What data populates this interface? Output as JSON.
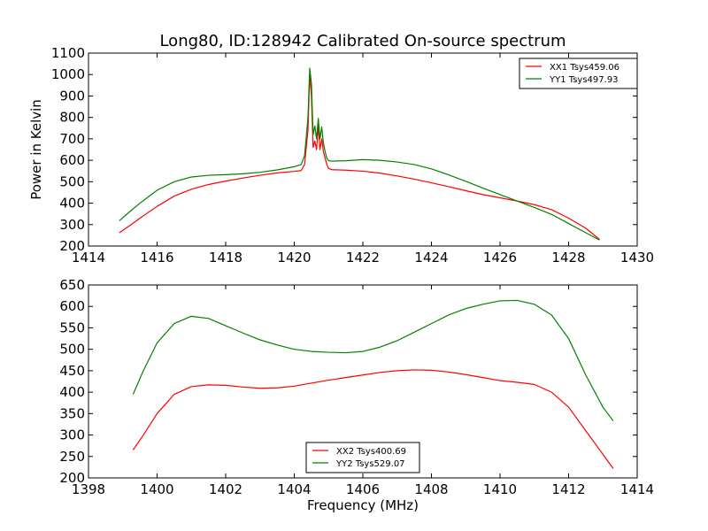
{
  "chart_data": [
    {
      "type": "line",
      "title": "Long80, ID:128942 Calibrated On-source spectrum",
      "xlabel": "",
      "ylabel": "Power in Kelvin",
      "xlim": [
        1414,
        1430
      ],
      "ylim": [
        200,
        1100
      ],
      "xticks": [
        1414,
        1416,
        1418,
        1420,
        1422,
        1424,
        1426,
        1428,
        1430
      ],
      "yticks": [
        200,
        300,
        400,
        500,
        600,
        700,
        800,
        900,
        1000,
        1100
      ],
      "grid": false,
      "legend_position": "top-right",
      "series": [
        {
          "name": "XX1 Tsys459.06",
          "color": "#ff0000",
          "x": [
            1414.9,
            1415.2,
            1415.5,
            1416.0,
            1416.5,
            1417.0,
            1417.5,
            1418.0,
            1418.5,
            1419.0,
            1419.5,
            1420.0,
            1420.2,
            1420.3,
            1420.4,
            1420.45,
            1420.5,
            1420.55,
            1420.6,
            1420.65,
            1420.7,
            1420.75,
            1420.8,
            1420.85,
            1420.9,
            1420.95,
            1421.0,
            1421.1,
            1421.5,
            1422.0,
            1422.5,
            1423.0,
            1423.5,
            1424.0,
            1424.5,
            1425.0,
            1425.5,
            1426.0,
            1426.5,
            1427.0,
            1427.5,
            1428.0,
            1428.5,
            1428.9
          ],
          "values": [
            262,
            295,
            330,
            385,
            433,
            465,
            487,
            503,
            517,
            530,
            541,
            548,
            552,
            580,
            740,
            1000,
            900,
            660,
            690,
            650,
            760,
            650,
            700,
            640,
            610,
            580,
            562,
            556,
            554,
            549,
            540,
            527,
            512,
            495,
            477,
            458,
            440,
            425,
            410,
            393,
            370,
            330,
            283,
            231
          ]
        },
        {
          "name": "YY1 Tsys497.93",
          "color": "#008000",
          "x": [
            1414.9,
            1415.2,
            1415.5,
            1416.0,
            1416.5,
            1417.0,
            1417.5,
            1418.0,
            1418.5,
            1419.0,
            1419.5,
            1420.0,
            1420.2,
            1420.3,
            1420.4,
            1420.45,
            1420.5,
            1420.55,
            1420.6,
            1420.65,
            1420.7,
            1420.75,
            1420.8,
            1420.85,
            1420.9,
            1420.95,
            1421.0,
            1421.1,
            1421.5,
            1422.0,
            1422.5,
            1423.0,
            1423.5,
            1424.0,
            1424.5,
            1425.0,
            1425.5,
            1426.0,
            1426.5,
            1427.0,
            1427.5,
            1428.0,
            1428.5,
            1428.9
          ],
          "values": [
            318,
            360,
            400,
            460,
            500,
            522,
            530,
            533,
            537,
            544,
            555,
            570,
            580,
            620,
            800,
            1030,
            960,
            720,
            760,
            700,
            795,
            700,
            755,
            680,
            640,
            610,
            598,
            596,
            598,
            603,
            600,
            592,
            580,
            560,
            532,
            502,
            470,
            440,
            410,
            380,
            348,
            305,
            262,
            228
          ]
        }
      ]
    },
    {
      "type": "line",
      "title": "",
      "xlabel": "Frequency (MHz)",
      "ylabel": "",
      "xlim": [
        1398,
        1414
      ],
      "ylim": [
        200,
        650
      ],
      "xticks": [
        1398,
        1400,
        1402,
        1404,
        1406,
        1408,
        1410,
        1412,
        1414
      ],
      "yticks": [
        200,
        250,
        300,
        350,
        400,
        450,
        500,
        550,
        600,
        650
      ],
      "grid": false,
      "legend_position": "bottom-center",
      "series": [
        {
          "name": "XX2 Tsys400.69",
          "color": "#ff0000",
          "x": [
            1399.3,
            1399.6,
            1400.0,
            1400.5,
            1401.0,
            1401.5,
            1402.0,
            1402.5,
            1403.0,
            1403.5,
            1404.0,
            1404.5,
            1405.0,
            1405.5,
            1406.0,
            1406.5,
            1407.0,
            1407.5,
            1408.0,
            1408.5,
            1409.0,
            1409.5,
            1410.0,
            1410.5,
            1411.0,
            1411.5,
            1412.0,
            1412.5,
            1413.0,
            1413.3
          ],
          "values": [
            265,
            300,
            350,
            395,
            413,
            417,
            416,
            412,
            409,
            410,
            414,
            421,
            428,
            434,
            440,
            446,
            450,
            452,
            451,
            447,
            441,
            434,
            427,
            423,
            418,
            400,
            365,
            310,
            255,
            222
          ]
        },
        {
          "name": "YY2 Tsys529.07",
          "color": "#008000",
          "x": [
            1399.3,
            1399.6,
            1400.0,
            1400.5,
            1401.0,
            1401.5,
            1402.0,
            1402.5,
            1403.0,
            1403.5,
            1404.0,
            1404.5,
            1405.0,
            1405.5,
            1406.0,
            1406.5,
            1407.0,
            1407.5,
            1408.0,
            1408.5,
            1409.0,
            1409.5,
            1410.0,
            1410.5,
            1411.0,
            1411.5,
            1412.0,
            1412.5,
            1413.0,
            1413.3
          ],
          "values": [
            395,
            450,
            515,
            560,
            577,
            572,
            555,
            538,
            522,
            510,
            500,
            495,
            493,
            492,
            495,
            505,
            520,
            540,
            560,
            580,
            595,
            605,
            613,
            614,
            605,
            580,
            525,
            440,
            365,
            333
          ]
        }
      ]
    }
  ]
}
